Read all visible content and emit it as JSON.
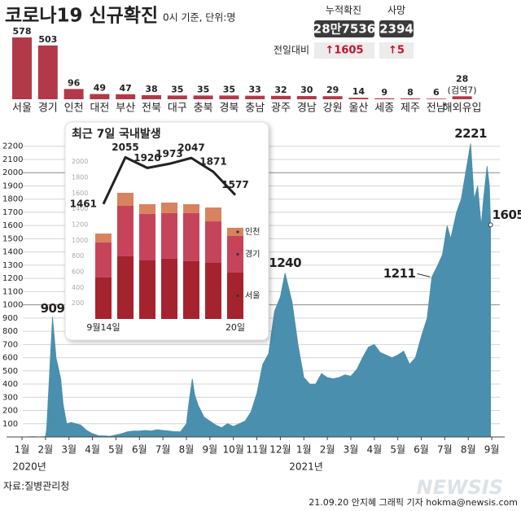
{
  "header": {
    "title": "코로나19 신규확진",
    "subtitle": "0시 기준, 단위:명",
    "change_label": "전일대비",
    "stats": [
      {
        "label": "누적확진",
        "value": "28만7536",
        "change": "↑1605"
      },
      {
        "label": "사망",
        "value": "2394",
        "change": "↑5"
      }
    ]
  },
  "chart_data": [
    {
      "type": "bar",
      "categories": [
        "서울",
        "경기",
        "인천",
        "대전",
        "부산",
        "전북",
        "대구",
        "충북",
        "경북",
        "충남",
        "광주",
        "경남",
        "강원",
        "울산",
        "세종",
        "제주",
        "전남",
        "해외유입"
      ],
      "values": [
        578,
        503,
        96,
        49,
        47,
        38,
        35,
        35,
        35,
        33,
        32,
        30,
        29,
        14,
        9,
        8,
        6,
        28
      ],
      "color": "#b23a48",
      "annotation": "(검역7)"
    },
    {
      "type": "area",
      "color": "#4a8fae",
      "x": [
        0.65,
        1.0,
        1.25,
        1.5,
        1.55,
        1.6,
        1.7,
        1.8,
        1.95,
        2.15,
        2.25,
        2.4,
        2.6,
        2.8,
        3.0,
        3.25,
        3.5,
        3.75,
        4.0,
        4.25,
        4.5,
        4.75,
        5.0,
        5.25,
        5.5,
        5.75,
        6.0,
        6.25,
        6.5,
        6.75,
        7.0,
        7.25,
        7.5,
        7.6,
        7.75,
        7.85,
        8.0,
        8.25,
        8.5,
        8.75,
        9.0,
        9.25,
        9.5,
        9.75,
        10.0,
        10.25,
        10.5,
        10.75,
        11.0,
        11.25,
        11.5,
        11.7,
        12.0,
        12.25,
        12.5,
        12.75,
        13.0,
        13.25,
        13.5,
        13.75,
        14.0,
        14.25,
        14.5,
        14.75,
        15.0,
        15.25,
        15.5,
        15.75,
        16.0,
        16.25,
        16.5,
        16.75,
        17.0,
        17.25,
        17.5,
        17.75,
        17.95,
        18.2,
        18.4,
        18.6,
        18.75,
        19.0,
        19.2,
        19.6,
        19.75,
        19.9,
        20.05,
        20.15,
        20.3,
        20.4,
        20.45
      ],
      "values": [
        1,
        2,
        1,
        3,
        60,
        230,
        570,
        909,
        600,
        440,
        250,
        100,
        110,
        100,
        90,
        50,
        25,
        10,
        8,
        5,
        15,
        25,
        40,
        45,
        45,
        50,
        45,
        55,
        50,
        45,
        40,
        40,
        100,
        250,
        440,
        320,
        240,
        150,
        120,
        90,
        70,
        100,
        80,
        100,
        120,
        190,
        330,
        550,
        630,
        950,
        1060,
        1240,
        1020,
        700,
        450,
        400,
        400,
        480,
        450,
        440,
        450,
        470,
        460,
        510,
        600,
        680,
        700,
        640,
        620,
        600,
        620,
        650,
        550,
        600,
        760,
        900,
        1211,
        1300,
        1380,
        1600,
        1500,
        1700,
        1800,
        2221,
        1800,
        1900,
        1600,
        1800,
        2050,
        1900,
        1605
      ],
      "xlim": [
        0,
        21
      ],
      "xticks": [
        {
          "value": 0.5,
          "label": "1월"
        },
        {
          "value": 1.5,
          "label": "2월"
        },
        {
          "value": 2.5,
          "label": "3월"
        },
        {
          "value": 3.5,
          "label": "4월"
        },
        {
          "value": 4.5,
          "label": "5월"
        },
        {
          "value": 5.5,
          "label": "6월"
        },
        {
          "value": 6.5,
          "label": "7월"
        },
        {
          "value": 7.5,
          "label": "8월"
        },
        {
          "value": 8.5,
          "label": "9월"
        },
        {
          "value": 9.5,
          "label": "10월"
        },
        {
          "value": 10.5,
          "label": "11월"
        },
        {
          "value": 11.5,
          "label": "12월"
        },
        {
          "value": 12.5,
          "label": "1월"
        },
        {
          "value": 13.5,
          "label": "2월"
        },
        {
          "value": 14.5,
          "label": "3월"
        },
        {
          "value": 15.5,
          "label": "4월"
        },
        {
          "value": 16.5,
          "label": "5월"
        },
        {
          "value": 17.5,
          "label": "6월"
        },
        {
          "value": 18.5,
          "label": "7월"
        },
        {
          "value": 19.5,
          "label": "8월"
        },
        {
          "value": 20.5,
          "label": "9월"
        }
      ],
      "year_labels": [
        "2020년",
        "2021년"
      ],
      "ylim": [
        0,
        2300
      ],
      "yticks": [
        100,
        200,
        300,
        400,
        500,
        600,
        700,
        800,
        900,
        1000,
        1100,
        1200,
        1300,
        1400,
        1500,
        1600,
        1700,
        1800,
        1900,
        2000,
        2100,
        2200
      ],
      "grid": true
    },
    {
      "type": "bar",
      "stacked": true,
      "title": "최근 7일 국내발생",
      "categories": [
        "9월14일",
        null,
        null,
        null,
        null,
        null,
        "20일"
      ],
      "series": [
        {
          "name": "서울",
          "color": "#a5232e",
          "values": [
            528,
            797,
            745,
            766,
            735,
            714,
            590
          ]
        },
        {
          "name": "경기",
          "color": "#c6445a",
          "values": [
            445,
            641,
            590,
            579,
            610,
            527,
            465
          ]
        },
        {
          "name": "인천",
          "color": "#d9825f",
          "values": [
            113,
            166,
            124,
            135,
            114,
            176,
            104
          ]
        }
      ],
      "line_values": [
        1461,
        2055,
        1920,
        1973,
        2047,
        1871,
        1577
      ],
      "line_color": "#222222",
      "ylim": [
        0,
        2100
      ],
      "yticks": [
        200,
        400,
        600,
        800,
        1000,
        1200,
        1400,
        1600,
        1800,
        2000
      ]
    }
  ],
  "footer": {
    "source": "자료:질병관리청",
    "credit": "21.09.20 안지혜 그래픽 기자 hokma@newsis.com",
    "watermark": "NEWSIS"
  }
}
